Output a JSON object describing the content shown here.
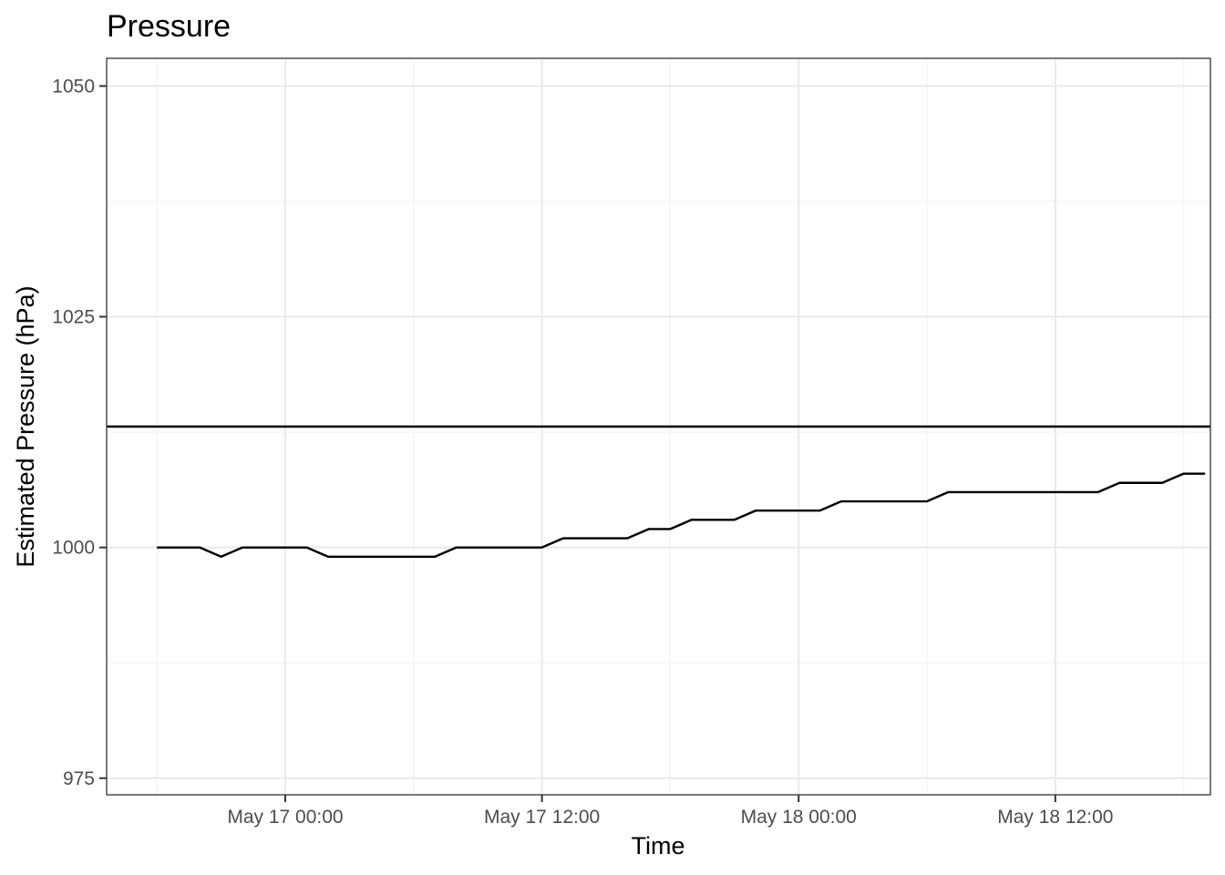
{
  "chart_data": {
    "type": "line",
    "title": "Pressure",
    "xlabel": "Time",
    "ylabel": "Estimated Pressure (hPa)",
    "x_tick_labels": [
      "May 17 00:00",
      "May 17 12:00",
      "May 18 00:00",
      "May 18 12:00"
    ],
    "x_ticks_hours": [
      0,
      12,
      24,
      36
    ],
    "y_ticks": [
      975,
      1000,
      1025,
      1050
    ],
    "xlim_hours": [
      -8.35,
      43.25
    ],
    "ylim": [
      973.2,
      1053
    ],
    "grid": true,
    "reference_line": {
      "y": 1013.1
    },
    "series": [
      {
        "x_hours": [
          -6,
          -5,
          -4,
          -3,
          -2,
          -1,
          0,
          1,
          2,
          3,
          4,
          5,
          6,
          7,
          8,
          9,
          10,
          11,
          12,
          13,
          14,
          15,
          16,
          17,
          18,
          19,
          20,
          21,
          22,
          23,
          24,
          25,
          26,
          27,
          28,
          29,
          30,
          31,
          32,
          33,
          34,
          35,
          36,
          37,
          38,
          39,
          40,
          41,
          42,
          43
        ],
        "values": [
          1000,
          1000,
          1000,
          999,
          1000,
          1000,
          1000,
          1000,
          999,
          999,
          999,
          999,
          999,
          999,
          1000,
          1000,
          1000,
          1000,
          1000,
          1001,
          1001,
          1001,
          1001,
          1002,
          1002,
          1003,
          1003,
          1003,
          1004,
          1004,
          1004,
          1004,
          1005,
          1005,
          1005,
          1005,
          1005,
          1006,
          1006,
          1006,
          1006,
          1006,
          1006,
          1006,
          1006,
          1007,
          1007,
          1007,
          1008,
          1008
        ]
      }
    ]
  }
}
